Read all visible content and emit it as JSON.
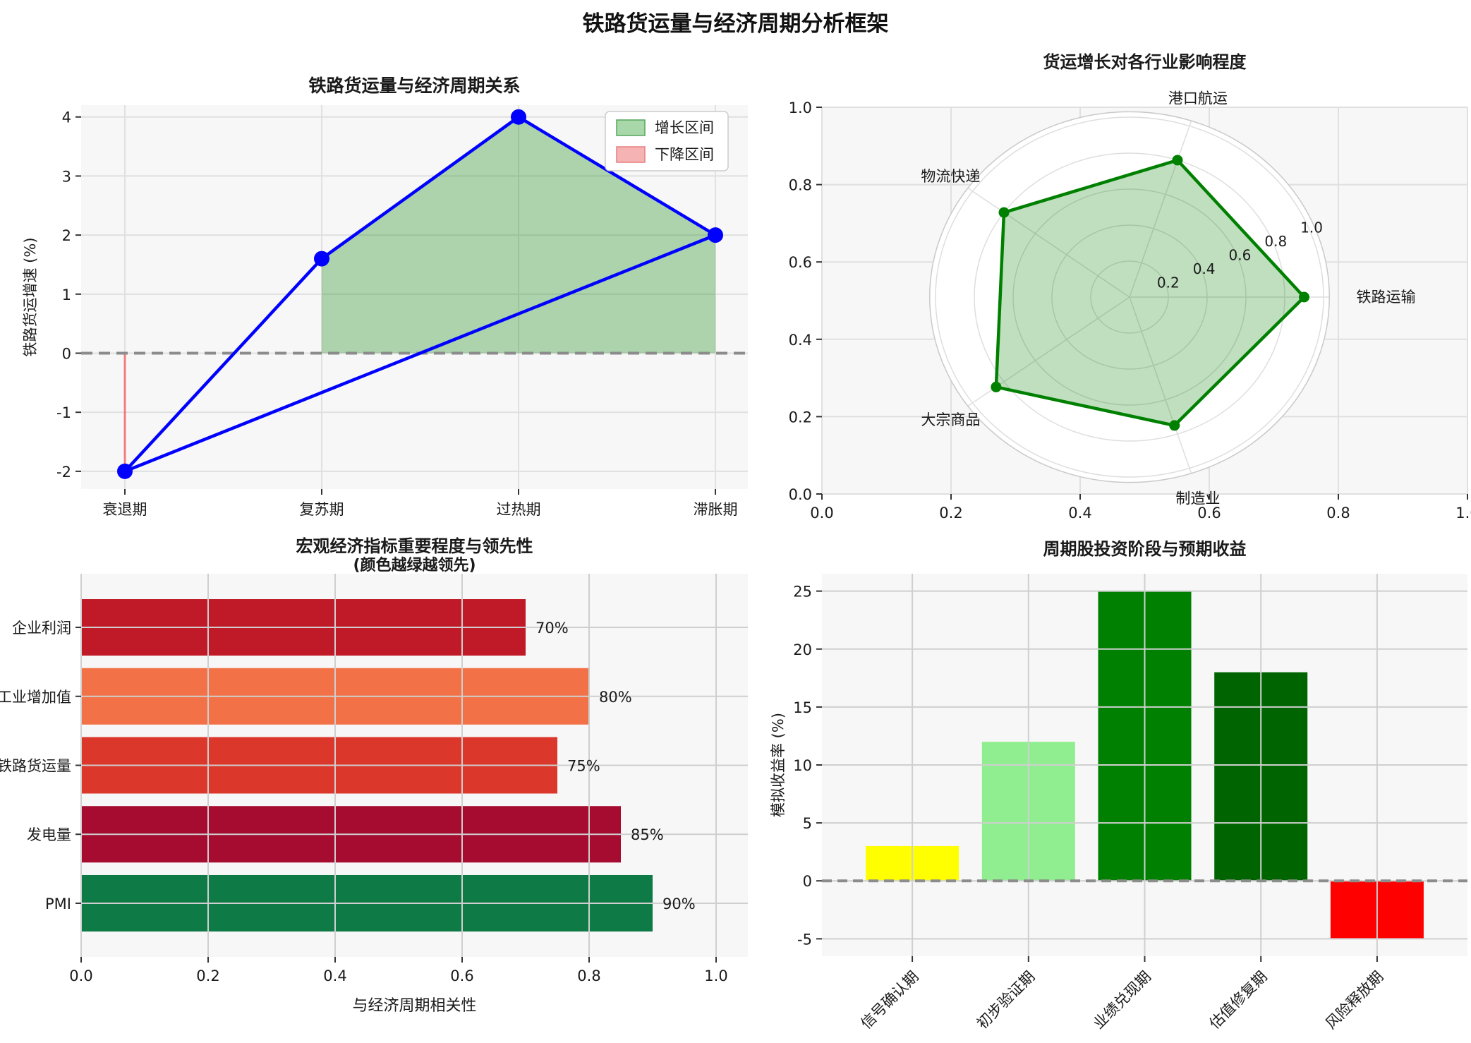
{
  "figure": {
    "title": "铁路货运量与经济周期分析框架"
  },
  "style": {
    "axes_bg": "#f7f7f7",
    "grid": "#e0e0e0",
    "grid_over": "#cfcfcf",
    "tick_mark": "#333333",
    "zero_dash": "#8c8c8c",
    "polar_bg": "#ffffff",
    "ring": "#dedede",
    "boundary": "#c9c9c9",
    "legend_border": "#cccccc"
  },
  "chart_data": [
    {
      "id": "cycle-line",
      "type": "line",
      "title": "铁路货运量与经济周期关系",
      "ylabel": "铁路货运增速 (%)",
      "categories": [
        "衰退期",
        "复苏期",
        "过热期",
        "滞胀期"
      ],
      "values": [
        -2,
        1.6,
        4,
        2
      ],
      "closed_loop": true,
      "yticks": [
        4,
        3,
        2,
        1,
        0,
        -1,
        -2
      ],
      "ylim": [
        -2.3,
        4.2
      ],
      "zero_line": true,
      "line_color": "#0000ff",
      "marker_color": "#0000ff",
      "legend": [
        {
          "label": "增长区间",
          "fill": "#a8d7aa",
          "edge": "#55a55a"
        },
        {
          "label": "下降区间",
          "fill": "#f6b3b3",
          "edge": "#e87f7f"
        }
      ],
      "growth_fill": {
        "from_category": 1,
        "to_category": 3,
        "baseline": 0,
        "color": "rgba(0,128,0,0.30)"
      },
      "decline_marker": {
        "category": 0,
        "from": 0,
        "to": -2,
        "color": "rgba(255,0,0,0.45)"
      }
    },
    {
      "id": "industry-radar",
      "type": "radar",
      "title": "货运增长对各行业影响程度",
      "categories": [
        "铁路运输",
        "港口航运",
        "物流快递",
        "大宗商品",
        "制造业"
      ],
      "values": [
        0.9,
        0.8,
        0.8,
        0.85,
        0.75
      ],
      "rticks": [
        "0.2",
        "0.4",
        "0.6",
        "0.8",
        "1.0"
      ],
      "xticks": [
        "0.0",
        "0.2",
        "0.4",
        "0.6",
        "0.8",
        "1.0"
      ],
      "yticks": [
        "1.0",
        "0.8",
        "0.6",
        "0.4",
        "0.2",
        "0.0"
      ],
      "line_color": "#008000",
      "fill_color": "rgba(0,128,0,0.25)"
    },
    {
      "id": "macro-indicators",
      "type": "bar-horizontal",
      "title": "宏观经济指标重要程度与领先性",
      "subtitle": "(颜色越绿越领先)",
      "xlabel": "与经济周期相关性",
      "categories": [
        "企业利润",
        "工业增加值",
        "铁路货运量",
        "发电量",
        "PMI"
      ],
      "values": [
        0.7,
        0.8,
        0.75,
        0.85,
        0.9
      ],
      "value_labels": [
        "70%",
        "80%",
        "75%",
        "85%",
        "90%"
      ],
      "bar_colors": [
        "#c01a28",
        "#f27146",
        "#db382b",
        "#a60c2f",
        "#0e7a45"
      ],
      "xticks": [
        "0.0",
        "0.2",
        "0.4",
        "0.6",
        "0.8",
        "1.0"
      ],
      "xlim": [
        0,
        1.05
      ]
    },
    {
      "id": "investment-stages",
      "type": "bar",
      "title": "周期股投资阶段与预期收益",
      "ylabel": "模拟收益率 (%)",
      "categories": [
        "信号确认期",
        "初步验证期",
        "业绩兑现期",
        "估值修复期",
        "风险释放期"
      ],
      "values": [
        3,
        12,
        25,
        18,
        -5
      ],
      "bar_colors": [
        "#ffff00",
        "#90ee90",
        "#008000",
        "#006400",
        "#ff0000"
      ],
      "yticks": [
        25,
        20,
        15,
        10,
        5,
        0,
        -5
      ],
      "ylim": [
        -6.5,
        26.5
      ],
      "zero_line": true
    }
  ]
}
